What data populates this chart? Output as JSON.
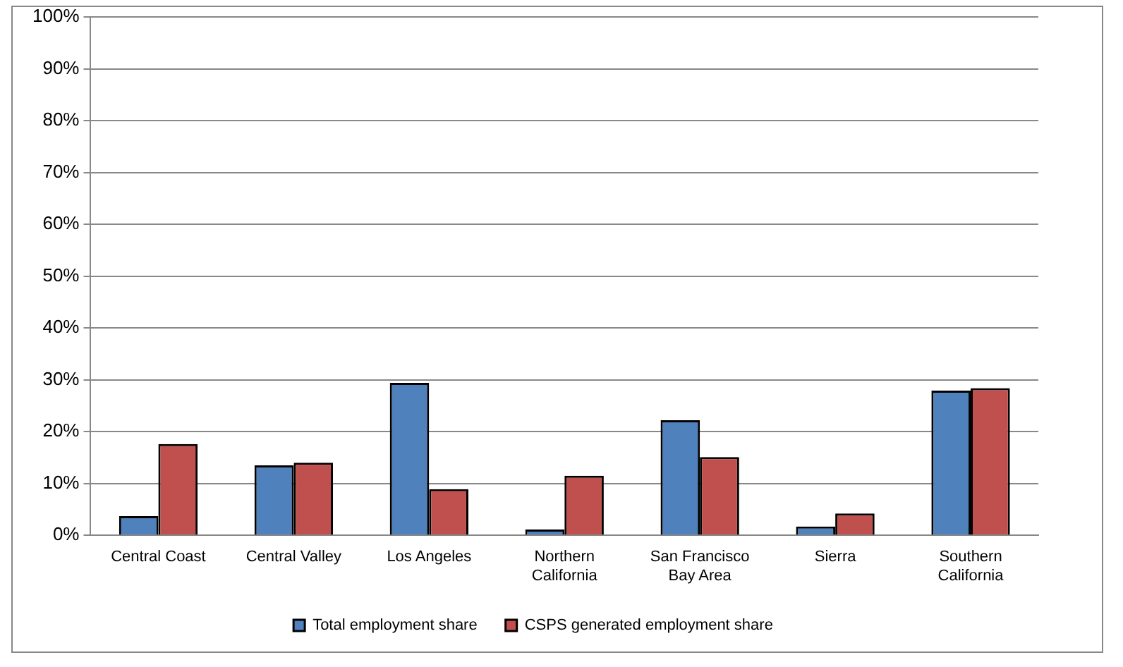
{
  "chart_data": {
    "type": "bar",
    "categories": [
      "Central Coast",
      "Central Valley",
      "Los Angeles",
      "Northern California",
      "San Francisco Bay Area",
      "Sierra",
      "Southern California"
    ],
    "series": [
      {
        "name": "Total employment share",
        "color": "#4f81bd",
        "values": [
          3.7,
          13.5,
          29.4,
          1.1,
          22.2,
          1.7,
          27.9
        ]
      },
      {
        "name": "CSPS generated employment share",
        "color": "#c0504d",
        "values": [
          17.6,
          14.0,
          8.9,
          11.5,
          15.1,
          4.2,
          28.4
        ]
      }
    ],
    "ylim": [
      0,
      100
    ],
    "yticks": [
      {
        "value": 0,
        "label": "0%"
      },
      {
        "value": 10,
        "label": "10%"
      },
      {
        "value": 20,
        "label": "20%"
      },
      {
        "value": 30,
        "label": "30%"
      },
      {
        "value": 40,
        "label": "40%"
      },
      {
        "value": 50,
        "label": "50%"
      },
      {
        "value": 60,
        "label": "60%"
      },
      {
        "value": 70,
        "label": "70%"
      },
      {
        "value": 80,
        "label": "80%"
      },
      {
        "value": 90,
        "label": "90%"
      },
      {
        "value": 100,
        "label": "100%"
      }
    ],
    "grid": "y",
    "legend": "bottom"
  }
}
